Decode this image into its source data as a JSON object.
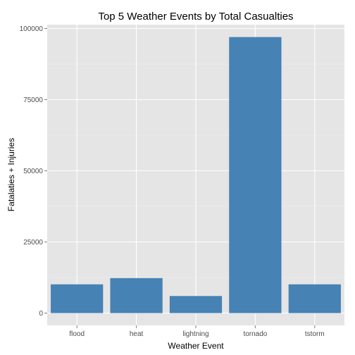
{
  "chart_data": {
    "type": "bar",
    "title": "Top 5 Weather Events by Total Casualties",
    "xlabel": "Weather Event",
    "ylabel": "Fatalaties + Injuries",
    "categories": [
      "flood",
      "heat",
      "lightning",
      "tornado",
      "tstorm"
    ],
    "values": [
      10100,
      12300,
      6000,
      97000,
      10100
    ],
    "ylim": [
      0,
      100000
    ],
    "yticks": [
      "0",
      "25000",
      "50000",
      "75000",
      "100000"
    ],
    "grid": true,
    "legend": "none",
    "colors": {
      "bar": "#4682b4",
      "panel": "#e5e5e5",
      "grid_major": "#ffffff",
      "grid_minor": "#f2f2f2"
    }
  }
}
